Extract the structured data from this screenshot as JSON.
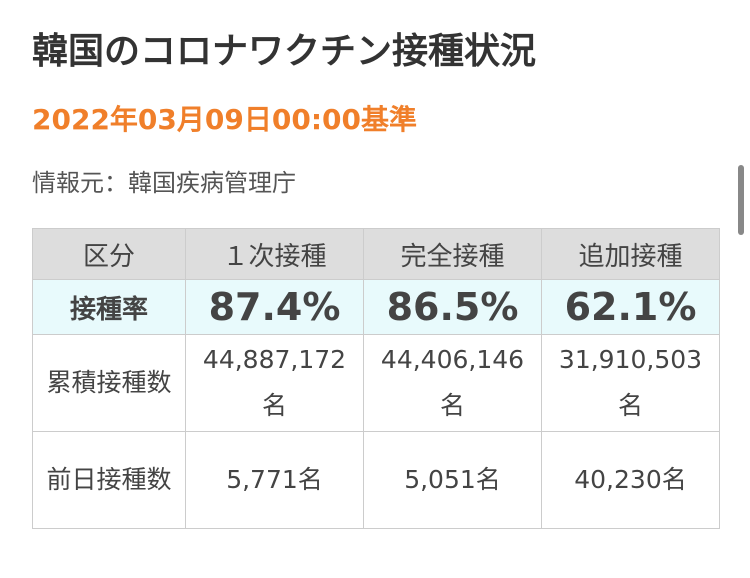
{
  "header": {
    "title": "韓国のコロナワクチン接種状況",
    "date": "2022年03月09日00:00基準",
    "source": "情報元：韓国疾病管理庁"
  },
  "table": {
    "columns": [
      "区分",
      "１次接種",
      "完全接種",
      "追加接種"
    ],
    "rows": [
      [
        "接種率",
        "87.4%",
        "86.5%",
        "62.1%"
      ],
      [
        "累積接種数",
        "44,887,172名",
        "44,406,146名",
        "31,910,503名"
      ],
      [
        "前日接種数",
        "5,771名",
        "5,051名",
        "40,230名"
      ]
    ]
  }
}
